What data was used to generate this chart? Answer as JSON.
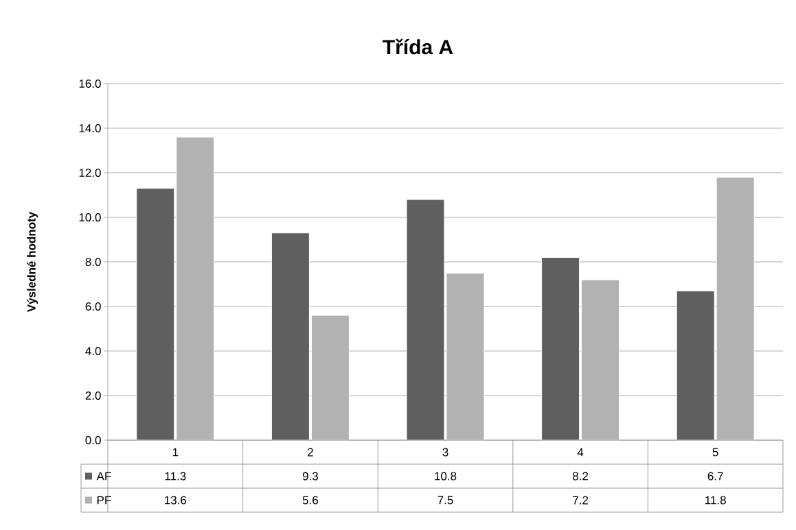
{
  "chart_data": {
    "type": "bar",
    "title": "Třída A",
    "ylabel": "Výsledné hodnoty",
    "categories": [
      "1",
      "2",
      "3",
      "4",
      "5"
    ],
    "series": [
      {
        "name": "AF",
        "color": "#5f5f5f",
        "values": [
          11.3,
          9.3,
          10.8,
          8.2,
          6.7
        ]
      },
      {
        "name": "PF",
        "color": "#b2b2b2",
        "values": [
          13.6,
          5.6,
          7.5,
          7.2,
          11.8
        ]
      }
    ],
    "ylim": [
      0,
      16
    ],
    "yticks": [
      {
        "value": 0,
        "label": "0.0"
      },
      {
        "value": 2,
        "label": "2.0"
      },
      {
        "value": 4,
        "label": "4.0"
      },
      {
        "value": 6,
        "label": "6.0"
      },
      {
        "value": 8,
        "label": "8.0"
      },
      {
        "value": 10,
        "label": "10.0"
      },
      {
        "value": 12,
        "label": "12.0"
      },
      {
        "value": 14,
        "label": "14.0"
      },
      {
        "value": 16,
        "label": "16.0"
      }
    ],
    "grid": "y",
    "legend": "bottom",
    "data_labels": true
  }
}
